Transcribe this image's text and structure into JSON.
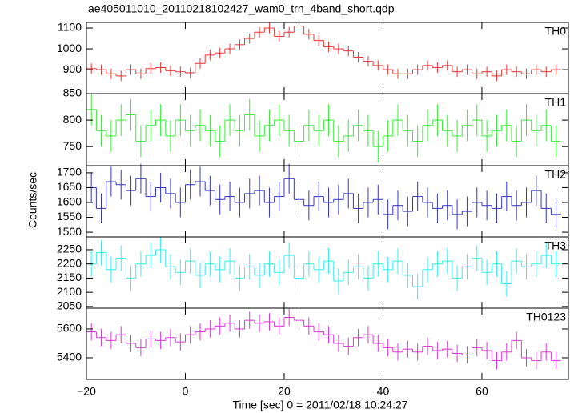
{
  "figure": {
    "title": "ae405011010_20110218102427_wam0_trn_4band_short.qdp",
    "xlabel": "Time [sec] 0 = 2011/02/18 10:24:27",
    "ylabel": "Counts/sec",
    "xlim": [
      -20,
      77.5
    ],
    "xticks": [
      {
        "value": -20,
        "label": "−20"
      },
      0,
      20,
      40,
      60
    ],
    "x": [
      -19,
      -17,
      -15,
      -13,
      -11,
      -9,
      -7,
      -5,
      -3,
      -1,
      1,
      3,
      5,
      7,
      9,
      11,
      13,
      15,
      17,
      19,
      21,
      23,
      25,
      27,
      29,
      31,
      33,
      35,
      37,
      39,
      41,
      43,
      45,
      47,
      49,
      51,
      53,
      55,
      57,
      59,
      61,
      63,
      65,
      67,
      69,
      71,
      73,
      75
    ]
  },
  "chart_data": [
    {
      "type": "line",
      "name": "TH0",
      "color": "#ee3333",
      "ylim": [
        785,
        1127
      ],
      "yticks": [
        900,
        1000,
        1100
      ],
      "error": 25,
      "values": [
        905,
        900,
        880,
        870,
        900,
        880,
        905,
        910,
        895,
        890,
        885,
        930,
        970,
        980,
        1000,
        1020,
        1050,
        1080,
        1100,
        1060,
        1080,
        1110,
        1070,
        1040,
        1010,
        1000,
        990,
        960,
        940,
        920,
        900,
        880,
        880,
        900,
        920,
        910,
        920,
        890,
        900,
        880,
        890,
        870,
        900,
        890,
        880,
        900,
        890,
        900
      ]
    },
    {
      "type": "line",
      "name": "TH1",
      "color": "#33ee33",
      "ylim": [
        714,
        850
      ],
      "yticks": [
        750,
        800,
        850
      ],
      "error": 30,
      "values": [
        820,
        780,
        770,
        800,
        810,
        760,
        790,
        800,
        770,
        800,
        780,
        790,
        780,
        760,
        800,
        780,
        810,
        770,
        790,
        800,
        780,
        760,
        790,
        780,
        800,
        760,
        770,
        790,
        780,
        750,
        770,
        800,
        780,
        760,
        790,
        800,
        780,
        770,
        790,
        800,
        770,
        780,
        790,
        760,
        800,
        780,
        790,
        760
      ]
    },
    {
      "type": "line",
      "name": "TH2",
      "color": "#3333cc",
      "ylim": [
        1484,
        1724
      ],
      "yticks": [
        1500,
        1550,
        1600,
        1650,
        1700
      ],
      "error": 50,
      "values": [
        1650,
        1580,
        1670,
        1660,
        1640,
        1680,
        1620,
        1650,
        1630,
        1600,
        1660,
        1670,
        1640,
        1610,
        1620,
        1600,
        1630,
        1640,
        1600,
        1620,
        1680,
        1610,
        1590,
        1620,
        1600,
        1610,
        1630,
        1580,
        1600,
        1610,
        1560,
        1590,
        1570,
        1620,
        1600,
        1580,
        1590,
        1560,
        1570,
        1600,
        1590,
        1580,
        1620,
        1590,
        1600,
        1640,
        1580,
        1560
      ]
    },
    {
      "type": "line",
      "name": "TH3",
      "color": "#33eeee",
      "ylim": [
        2044,
        2295
      ],
      "yticks": [
        2050,
        2100,
        2150,
        2200,
        2250
      ],
      "error": 45,
      "values": [
        2200,
        2240,
        2180,
        2220,
        2150,
        2200,
        2230,
        2250,
        2190,
        2170,
        2210,
        2160,
        2200,
        2180,
        2210,
        2150,
        2190,
        2160,
        2200,
        2170,
        2230,
        2150,
        2200,
        2180,
        2210,
        2140,
        2170,
        2190,
        2150,
        2200,
        2180,
        2210,
        2160,
        2120,
        2180,
        2200,
        2210,
        2150,
        2190,
        2220,
        2170,
        2200,
        2130,
        2210,
        2190,
        2200,
        2230,
        2200
      ]
    },
    {
      "type": "line",
      "name": "TH0123",
      "color": "#dd33dd",
      "ylim": [
        5250,
        5744
      ],
      "yticks": [
        5400,
        5600
      ],
      "error": 60,
      "values": [
        5580,
        5540,
        5520,
        5560,
        5500,
        5470,
        5530,
        5520,
        5540,
        5510,
        5560,
        5580,
        5600,
        5620,
        5640,
        5600,
        5660,
        5640,
        5650,
        5620,
        5680,
        5660,
        5620,
        5580,
        5560,
        5500,
        5480,
        5540,
        5560,
        5500,
        5470,
        5440,
        5460,
        5440,
        5480,
        5450,
        5460,
        5430,
        5420,
        5470,
        5450,
        5380,
        5440,
        5520,
        5400,
        5380,
        5440,
        5380
      ]
    }
  ]
}
